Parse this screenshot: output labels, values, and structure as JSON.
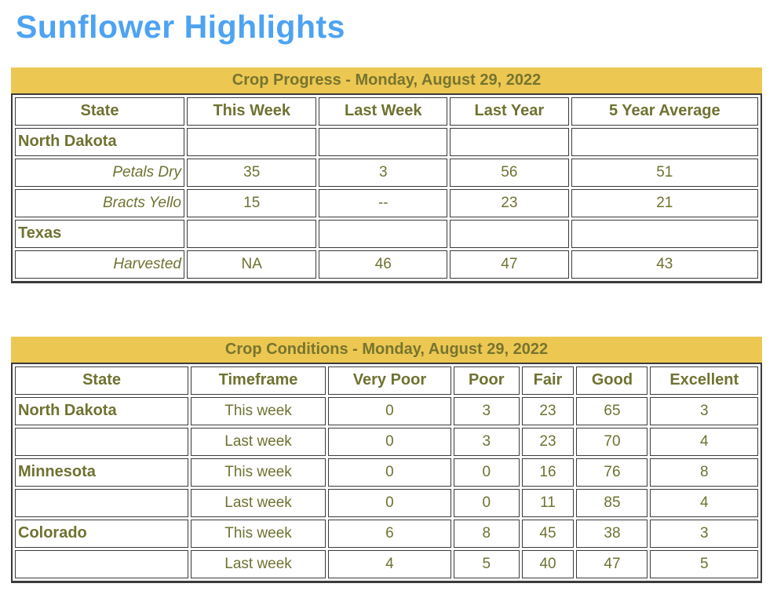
{
  "page": {
    "title": "Sunflower Highlights"
  },
  "colors": {
    "title": "#4da3f2",
    "caption-bg": "#ecc853",
    "caption-text": "#77742e",
    "text": "#6f7231",
    "border": "#3b3b3b"
  },
  "progress_table": {
    "caption": "Crop Progress - Monday, August 29, 2022",
    "columns": [
      "State",
      "This Week",
      "Last Week",
      "Last Year",
      "5 Year Average"
    ],
    "col_widths_pct": [
      23.1,
      17.7,
      17.5,
      16.2,
      25.5
    ],
    "rows": [
      {
        "label": "North Dakota",
        "style": "state",
        "values": [
          "",
          "",
          "",
          ""
        ]
      },
      {
        "label": "Petals Dry",
        "style": "sub",
        "values": [
          "35",
          "3",
          "56",
          "51"
        ]
      },
      {
        "label": "Bracts Yello",
        "style": "sub",
        "values": [
          "15",
          "--",
          "23",
          "21"
        ]
      },
      {
        "label": "Texas",
        "style": "state",
        "values": [
          "",
          "",
          "",
          ""
        ]
      },
      {
        "label": "Harvested",
        "style": "sub",
        "values": [
          "NA",
          "46",
          "47",
          "43"
        ]
      }
    ]
  },
  "conditions_table": {
    "caption": "Crop Conditions - Monday, August 29, 2022",
    "columns": [
      "State",
      "Timeframe",
      "Very Poor",
      "Poor",
      "Fair",
      "Good",
      "Excellent"
    ],
    "col_widths_pct": [
      23.8,
      18.5,
      16.9,
      9.0,
      7.2,
      9.8,
      14.8
    ],
    "rows": [
      {
        "label": "North Dakota",
        "style": "state",
        "values": [
          "This week",
          "0",
          "3",
          "23",
          "65",
          "3"
        ]
      },
      {
        "label": "",
        "style": "state",
        "values": [
          "Last week",
          "0",
          "3",
          "23",
          "70",
          "4"
        ]
      },
      {
        "label": "Minnesota",
        "style": "state",
        "values": [
          "This week",
          "0",
          "0",
          "16",
          "76",
          "8"
        ]
      },
      {
        "label": "",
        "style": "state",
        "values": [
          "Last week",
          "0",
          "0",
          "11",
          "85",
          "4"
        ]
      },
      {
        "label": "Colorado",
        "style": "state",
        "values": [
          "This week",
          "6",
          "8",
          "45",
          "38",
          "3"
        ]
      },
      {
        "label": "",
        "style": "state",
        "values": [
          "Last week",
          "4",
          "5",
          "40",
          "47",
          "5"
        ]
      }
    ]
  }
}
